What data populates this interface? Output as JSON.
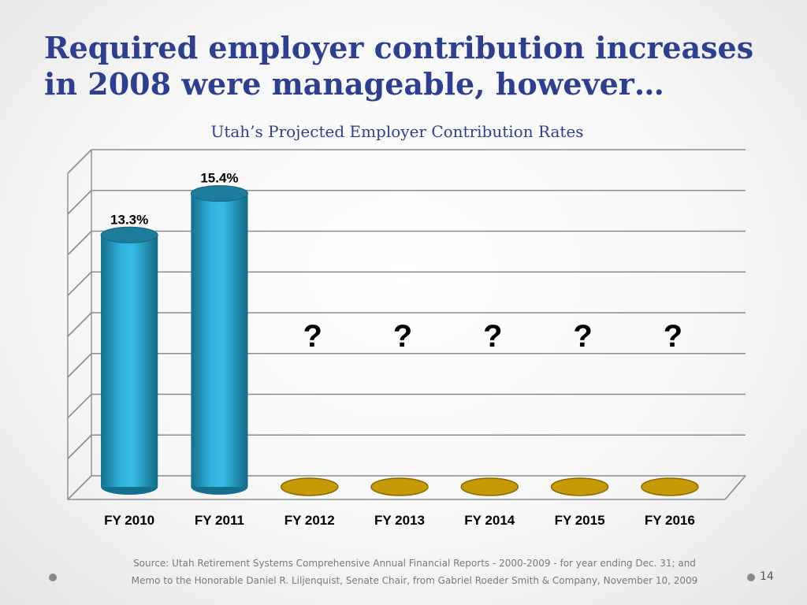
{
  "slide": {
    "title": "Required employer contribution increases in 2008 were manageable, however…",
    "source_line_1": "Source: Utah Retirement Systems Comprehensive Annual Financial Reports - 2000-2009 - for year ending Dec. 31; and",
    "source_line_2": "Memo to the Honorable Daniel R. Liljenquist, Senate Chair, from Gabriel Roeder Smith & Company, November 10, 2009",
    "page_number": "14"
  },
  "chart_data": {
    "type": "bar",
    "title": "Utah’s Projected Employer Contribution Rates",
    "categories": [
      "FY 2010",
      "FY 2011",
      "FY 2012",
      "FY 2013",
      "FY 2014",
      "FY 2015",
      "FY 2016"
    ],
    "values": [
      13.3,
      15.4,
      null,
      null,
      null,
      null,
      null
    ],
    "data_labels": [
      "13.3%",
      "15.4%",
      "?",
      "?",
      "?",
      "?",
      "?"
    ],
    "ylim": [
      0,
      16.5
    ],
    "grid": true,
    "legend": "none",
    "style": "3d-cylinder",
    "colors": {
      "bar": "#2aa3cc",
      "bar_dark": "#15708f",
      "bar_top": "#1f7d9c",
      "unknown_disc": "#c59a06",
      "unknown_disc_edge": "#8a6a00",
      "grid": "#8c8c8c",
      "title": "#2e3f8f"
    }
  }
}
